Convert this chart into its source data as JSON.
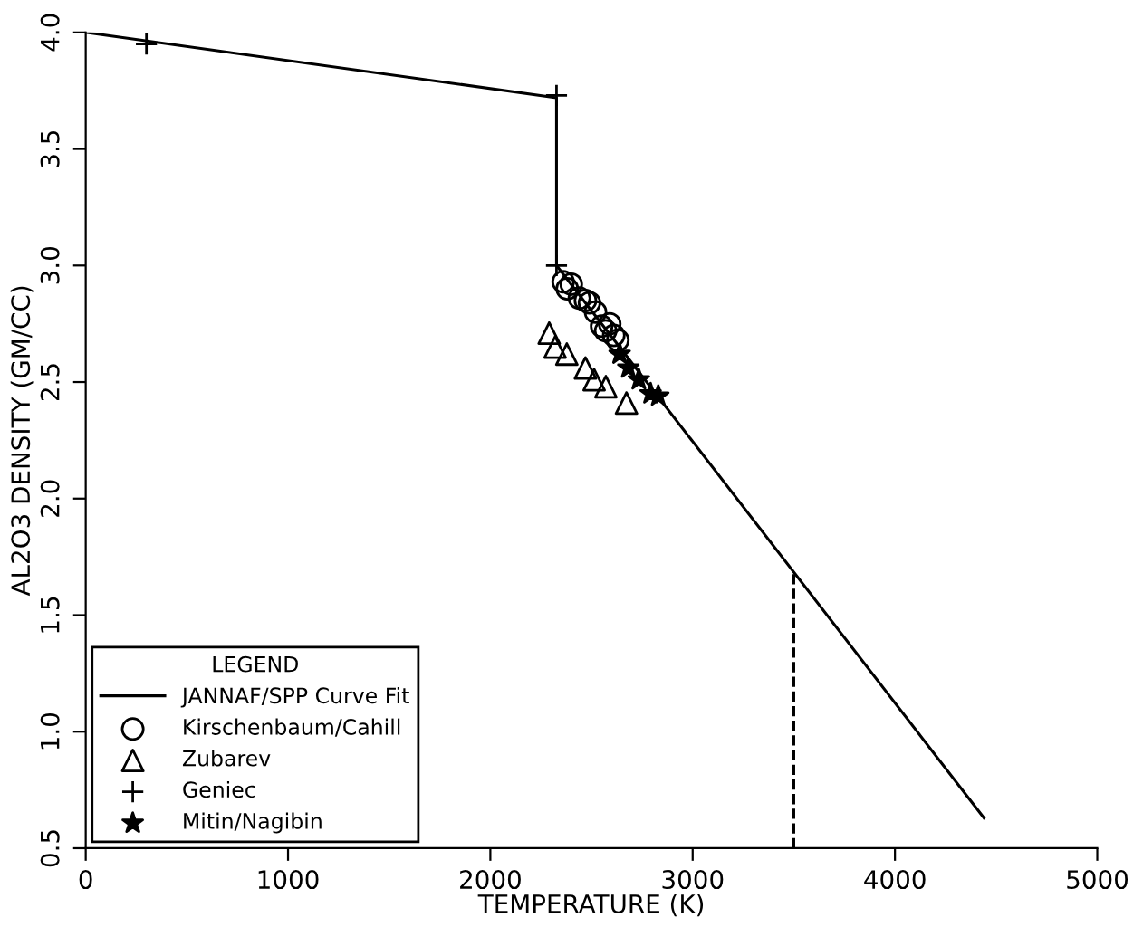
{
  "chart_data": {
    "type": "scatter",
    "xlabel": "TEMPERATURE (K)",
    "ylabel": "AL2O3 DENSITY (GM/CC)",
    "legend_title": "LEGEND",
    "legend": "bottom left",
    "grid": false,
    "xlim": [
      0,
      5000
    ],
    "xticks": [
      0,
      1000,
      2000,
      3000,
      4000,
      5000
    ],
    "ylim": [
      0.5,
      4.0
    ],
    "yticks": [
      0.5,
      {
        "value": 1,
        "label": "1.0"
      },
      1.5,
      {
        "value": 2,
        "label": "2.0"
      },
      2.5,
      {
        "value": 3,
        "label": "3.0"
      },
      3.5,
      {
        "value": 4,
        "label": "4.0"
      }
    ],
    "series": [
      {
        "name": "JANNAF/SPP Curve Fit",
        "type": "line",
        "marker": "none",
        "line_style": "solid",
        "color": "#000000",
        "x": [
          0,
          2327,
          2327,
          4440
        ],
        "values": [
          4.0,
          3.72,
          3.0,
          0.63
        ]
      },
      {
        "name": "Kirschenbaum/Cahill",
        "marker": "circle",
        "color": "#000000",
        "x": [
          2360,
          2380,
          2400,
          2440,
          2470,
          2490,
          2520,
          2550,
          2570,
          2590,
          2610,
          2630
        ],
        "values": [
          2.93,
          2.9,
          2.92,
          2.86,
          2.85,
          2.84,
          2.8,
          2.74,
          2.72,
          2.75,
          2.7,
          2.68
        ]
      },
      {
        "name": "Zubarev",
        "marker": "triangle",
        "color": "#000000",
        "x": [
          2291,
          2320,
          2378,
          2470,
          2513,
          2571,
          2673
        ],
        "values": [
          2.71,
          2.65,
          2.62,
          2.56,
          2.51,
          2.48,
          2.41
        ]
      },
      {
        "name": "Geniec",
        "marker": "cross",
        "color": "#000000",
        "x": [
          300,
          2327,
          2327
        ],
        "values": [
          3.95,
          3.73,
          3.0
        ]
      },
      {
        "name": "Mitin/Nagibin",
        "marker": "star",
        "color": "#000000",
        "x": [
          2639,
          2682,
          2734,
          2792,
          2830
        ],
        "values": [
          2.62,
          2.56,
          2.51,
          2.45,
          2.44
        ]
      },
      {
        "type": "line",
        "marker": "none",
        "line_style": "dashed",
        "color": "#000000",
        "x": [
          3500,
          3500
        ],
        "values": [
          0.5,
          1.68
        ]
      }
    ]
  }
}
